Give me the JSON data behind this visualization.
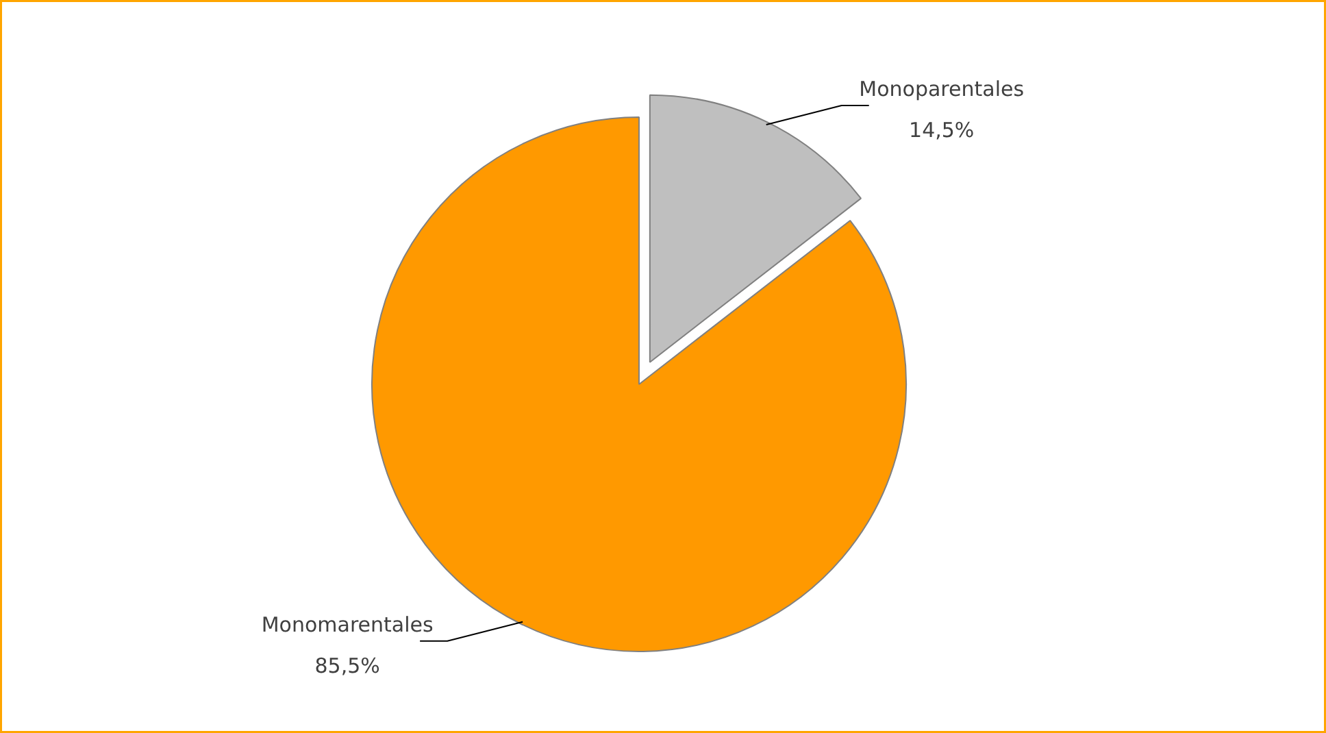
{
  "chart_data": {
    "type": "pie",
    "categories": [
      "Monoparentales",
      "Monomarentales"
    ],
    "values": [
      14.5,
      85.5
    ],
    "colors": [
      "#bfbfbf",
      "#ff9900"
    ],
    "value_labels": [
      "14,5%",
      "85,5%"
    ]
  }
}
